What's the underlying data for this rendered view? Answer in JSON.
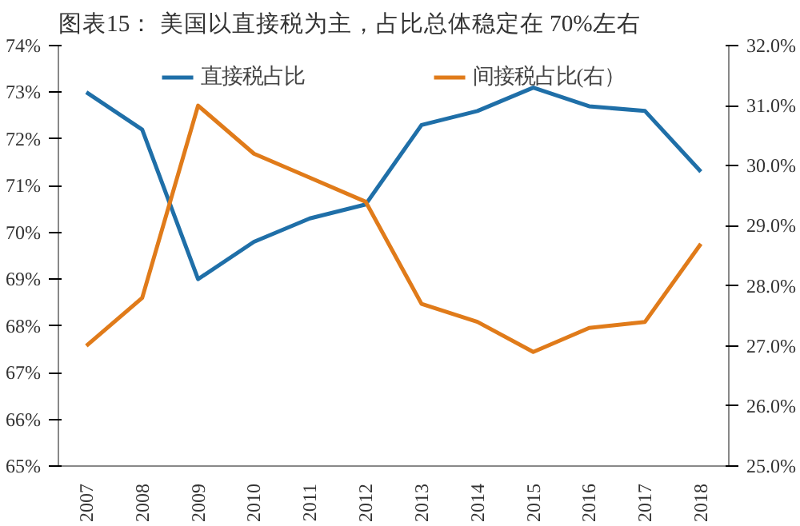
{
  "chart_data": {
    "type": "line",
    "title": "图表15：  美国以直接税为主，占比总体稳定在 70%左右",
    "categories": [
      "2007",
      "2008",
      "2009",
      "2010",
      "2011",
      "2012",
      "2013",
      "2014",
      "2015",
      "2016",
      "2017",
      "2018"
    ],
    "series": [
      {
        "name": "直接税占比",
        "color": "#1f6fa8",
        "values": [
          73.0,
          72.2,
          69.0,
          69.8,
          70.3,
          70.6,
          72.3,
          72.6,
          73.1,
          72.7,
          72.6,
          71.3
        ]
      },
      {
        "name": "间接税占比(右）",
        "color": "#e07b1a",
        "axis": "y2",
        "values": [
          27.0,
          27.8,
          31.0,
          30.2,
          29.8,
          29.4,
          27.7,
          27.4,
          26.9,
          27.3,
          27.4,
          28.7
        ]
      }
    ],
    "ylim": [
      65,
      74
    ],
    "yticks": [
      {
        "value": 65,
        "label": "65%"
      },
      {
        "value": 66,
        "label": "66%"
      },
      {
        "value": 67,
        "label": "67%"
      },
      {
        "value": 68,
        "label": "68%"
      },
      {
        "value": 69,
        "label": "69%"
      },
      {
        "value": 70,
        "label": "70%"
      },
      {
        "value": 71,
        "label": "71%"
      },
      {
        "value": 72,
        "label": "72%"
      },
      {
        "value": 73,
        "label": "73%"
      },
      {
        "value": 74,
        "label": "74%"
      }
    ],
    "y2lim": [
      25,
      32
    ],
    "y2ticks": [
      {
        "value": 25,
        "label": "25.0%"
      },
      {
        "value": 26,
        "label": "26.0%"
      },
      {
        "value": 27,
        "label": "27.0%"
      },
      {
        "value": 28,
        "label": "28.0%"
      },
      {
        "value": 29,
        "label": "29.0%"
      },
      {
        "value": 30,
        "label": "30.0%"
      },
      {
        "value": 31,
        "label": "31.0%"
      },
      {
        "value": 32,
        "label": "32.0%"
      }
    ],
    "grid": false,
    "legend": "top",
    "line_style": "solid"
  }
}
